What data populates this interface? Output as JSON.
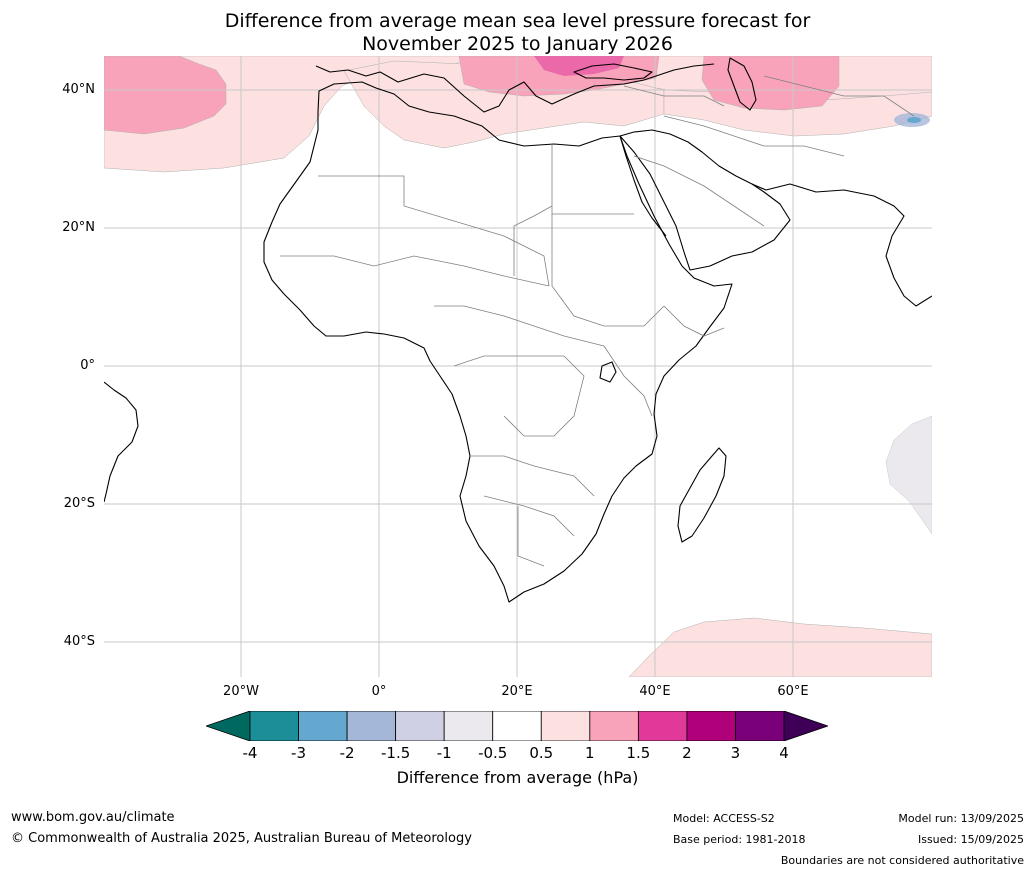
{
  "header": {
    "title_line1": "Difference from average mean sea level pressure forecast for",
    "title_line2": "November 2025 to January 2026"
  },
  "map": {
    "lat_labels": [
      "40°N",
      "20°N",
      "0°",
      "20°S",
      "40°S"
    ],
    "lon_labels": [
      "20°W",
      "0°",
      "20°E",
      "40°E",
      "60°E"
    ],
    "colors": {
      "pink_light": "#fde0e0",
      "pink_mid": "#f9a3bb",
      "magenta": "#e0399a",
      "grey_light": "#ebe9ee",
      "blue_light": "#a5b7d8",
      "land_outline": "#000000",
      "border": "#808080",
      "grid": "#c8c8c8"
    }
  },
  "colorbar": {
    "ticks": [
      "-4",
      "-3",
      "-2",
      "-1.5",
      "-1",
      "-0.5",
      "0.5",
      "1",
      "1.5",
      "2",
      "3",
      "4"
    ],
    "colors": [
      "#00695f",
      "#1b8e97",
      "#64a8d0",
      "#a5b7d8",
      "#cfd0e3",
      "#ebe9ee",
      "#ffffff",
      "#fde0e0",
      "#f9a3bb",
      "#e0399a",
      "#b0007a",
      "#7a007a",
      "#3d0056"
    ],
    "label": "Difference from average (hPa)"
  },
  "footer": {
    "url": "www.bom.gov.au/climate",
    "copyright": "© Commonwealth of Australia 2025, Australian Bureau of Meteorology",
    "model": "Model: ACCESS-S2",
    "base_period": "Base period: 1981-2018",
    "model_run": "Model run: 13/09/2025",
    "issued": "Issued: 15/09/2025",
    "disclaimer": "Boundaries are not considered authoritative"
  }
}
